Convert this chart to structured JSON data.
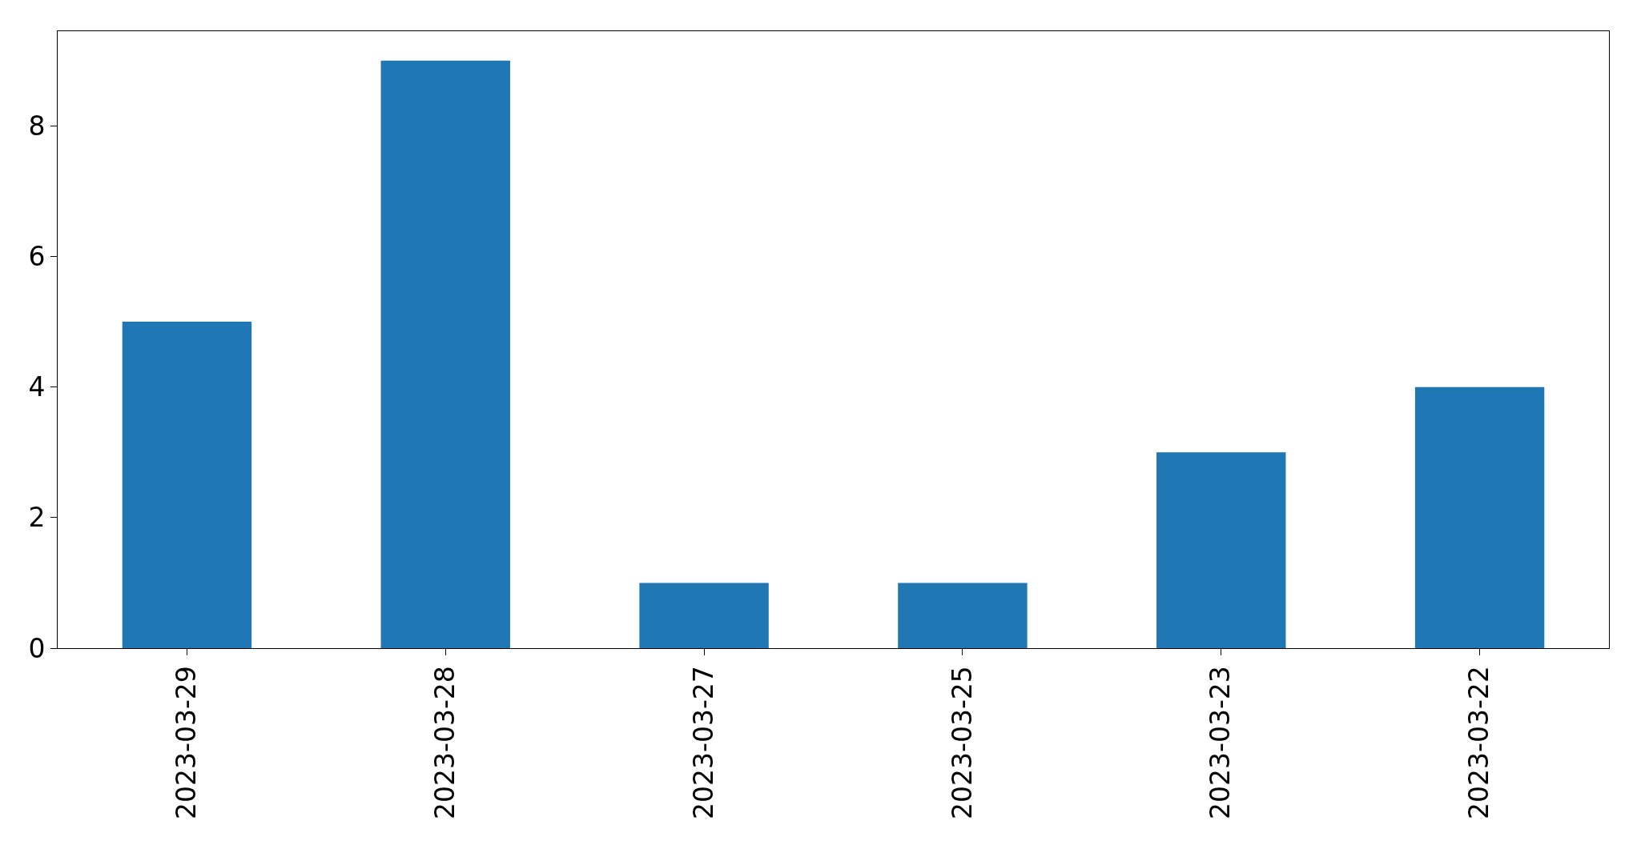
{
  "chart_data": {
    "type": "bar",
    "categories": [
      "2023-03-29",
      "2023-03-28",
      "2023-03-27",
      "2023-03-25",
      "2023-03-23",
      "2023-03-22"
    ],
    "values": [
      5,
      9,
      1,
      1,
      3,
      4
    ],
    "color": "#1f77b4",
    "ylim": [
      0,
      9.45
    ],
    "yticks": [
      0,
      2,
      4,
      6,
      8
    ]
  }
}
